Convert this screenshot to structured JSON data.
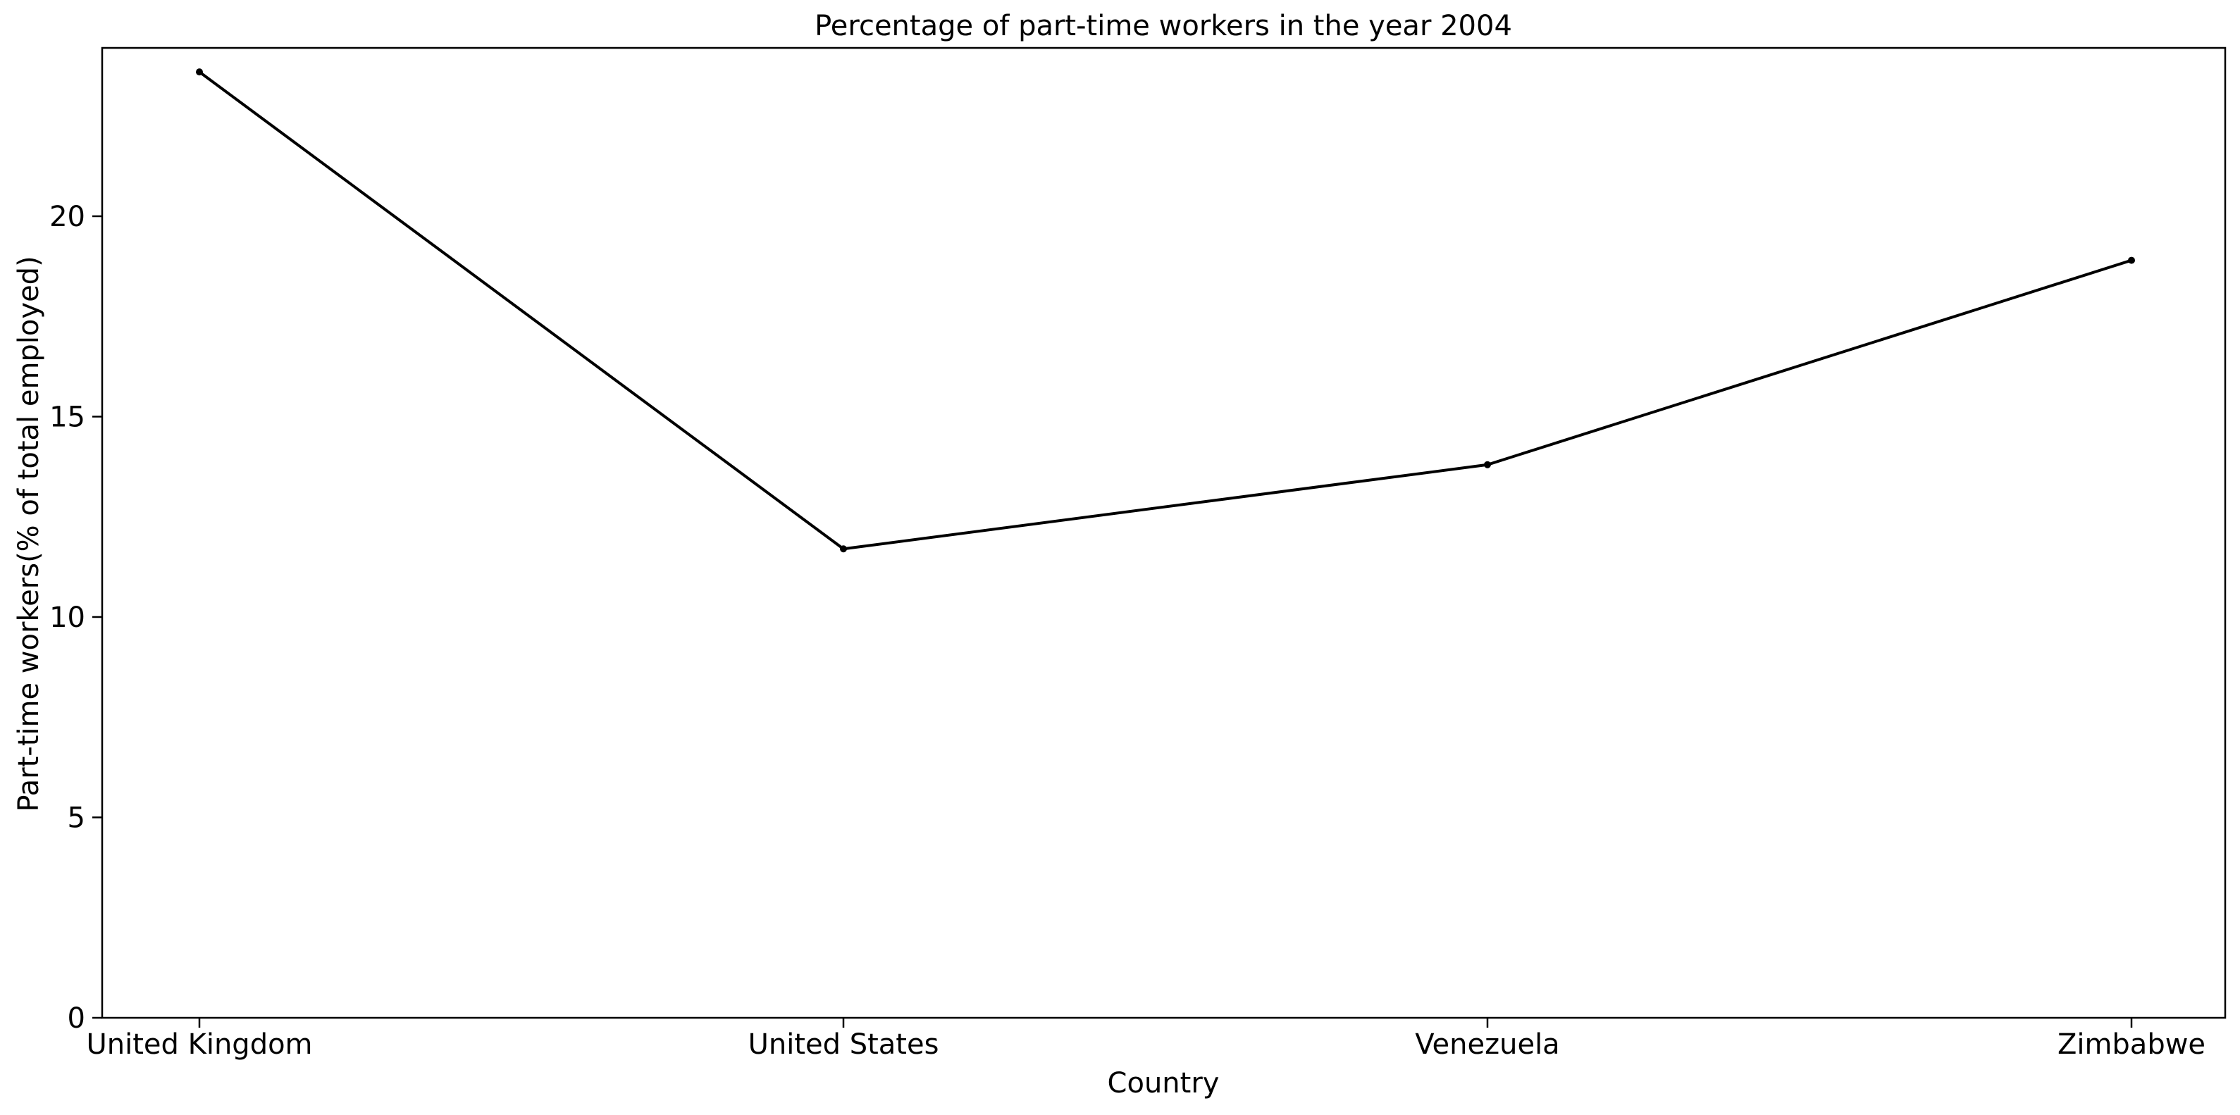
{
  "chart_data": {
    "type": "line",
    "title": "Percentage of part-time workers in the year 2004",
    "xlabel": "Country",
    "ylabel": "Part-time workers(% of total employed)",
    "categories": [
      "United Kingdom",
      "United States",
      "Venezuela",
      "Zimbabwe"
    ],
    "series": [
      {
        "values": [
          23.6,
          11.7,
          13.8,
          18.9
        ],
        "color": "#000000",
        "marker": "circle"
      }
    ],
    "ylim": [
      0,
      24.2
    ],
    "yticks": [
      0,
      5,
      10,
      15,
      20
    ],
    "grid": false,
    "legend": "none"
  }
}
